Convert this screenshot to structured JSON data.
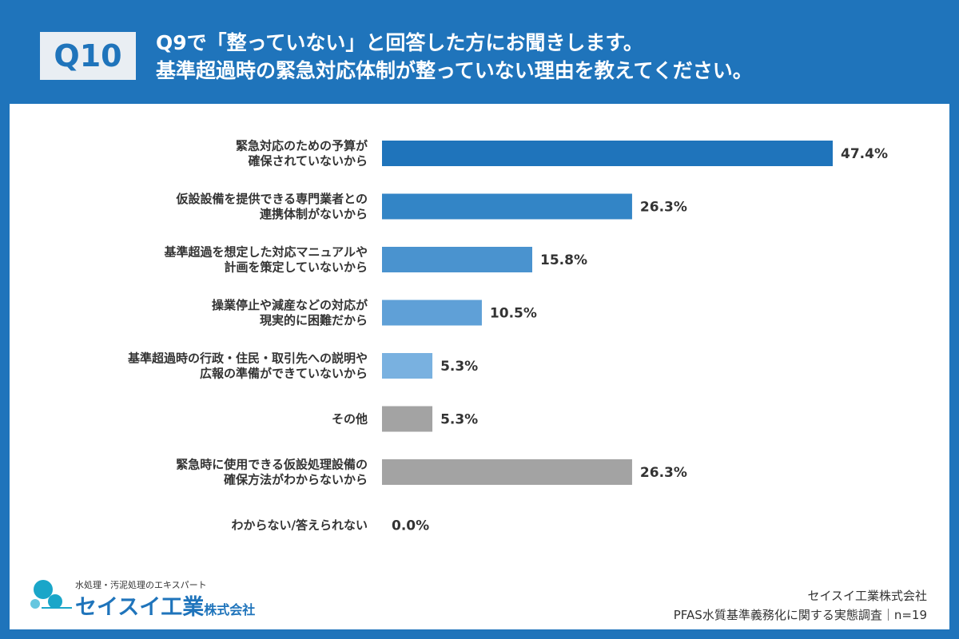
{
  "header": {
    "badge": "Q10",
    "title_line1": "Q9で「整っていない」と回答した方にお聞きします。",
    "title_line2": "基準超過時の緊急対応体制が整っていない理由を教えてください。"
  },
  "colors": {
    "background": "#1f74bb",
    "gray": "#a3a3a3"
  },
  "chart_data": {
    "type": "bar",
    "orientation": "horizontal",
    "unit": "%",
    "xlim": [
      0,
      50
    ],
    "categories": [
      [
        "緊急対応のための予算が",
        "確保されていないから"
      ],
      [
        "仮設設備を提供できる専門業者との",
        "連携体制がないから"
      ],
      [
        "基準超過を想定した対応マニュアルや",
        "計画を策定していないから"
      ],
      [
        "操業停止や減産などの対応が",
        "現実的に困難だから"
      ],
      [
        "基準超過時の行政・住民・取引先への説明や",
        "広報の準備ができていないから"
      ],
      [
        "その他"
      ],
      [
        "緊急時に使用できる仮設処理設備の",
        "確保方法がわからないから"
      ],
      [
        "わからない/答えられない"
      ]
    ],
    "values": [
      47.4,
      26.3,
      15.8,
      10.5,
      5.3,
      5.3,
      26.3,
      0.0
    ],
    "value_labels": [
      "47.4%",
      "26.3%",
      "15.8%",
      "10.5%",
      "5.3%",
      "5.3%",
      "26.3%",
      "0.0%"
    ],
    "bar_colors": [
      "#1f74bb",
      "#3385c6",
      "#4a93cf",
      "#5fa0d7",
      "#79b1e0",
      "#a3a3a3",
      "#a3a3a3",
      "#a3a3a3"
    ]
  },
  "footer": {
    "logo_tagline": "水処理・汚泥処理のエキスパート",
    "logo_name": "セイスイ工業",
    "logo_suffix": "株式会社",
    "company": "セイスイ工業株式会社",
    "survey": "PFAS水質基準義務化に関する実態調査｜n=19"
  }
}
